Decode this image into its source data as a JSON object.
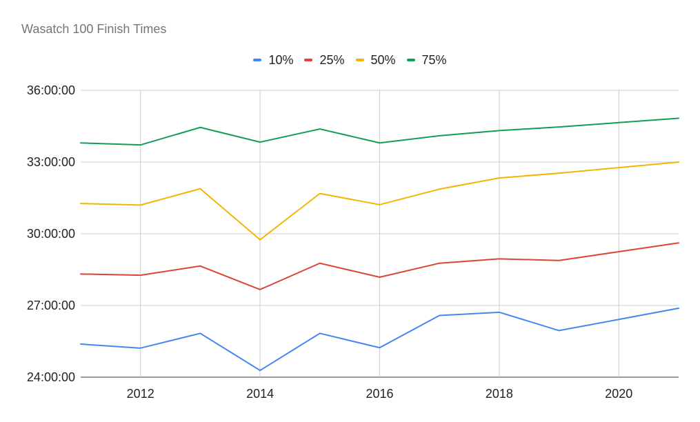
{
  "chart_data": {
    "type": "line",
    "title": "Wasatch 100 Finish Times",
    "xlabel": "",
    "ylabel": "",
    "x": [
      2011,
      2012,
      2013,
      2014,
      2015,
      2016,
      2017,
      2018,
      2019,
      2020,
      2021
    ],
    "x_ticks": [
      "2012",
      "2014",
      "2016",
      "2018",
      "2020"
    ],
    "xlim": [
      2011,
      2021
    ],
    "y_ticks": [
      "24:00:00",
      "27:00:00",
      "30:00:00",
      "33:00:00",
      "36:00:00"
    ],
    "ylim": [
      "24:00:00",
      "36:00:00"
    ],
    "grid": true,
    "legend_position": "top",
    "series": [
      {
        "name": "10%",
        "color": "#4285f4",
        "values": [
          "25:23:00",
          "25:13:00",
          "25:50:00",
          "24:17:00",
          "25:50:00",
          "25:14:00",
          "26:35:00",
          "26:43:00",
          "25:57:00",
          "26:25:00",
          "26:53:00"
        ]
      },
      {
        "name": "25%",
        "color": "#db4437",
        "values": [
          "28:19:00",
          "28:16:00",
          "28:39:00",
          "27:40:00",
          "28:46:00",
          "28:11:00",
          "28:46:00",
          "28:57:00",
          "28:53:00",
          "29:15:00",
          "29:37:00"
        ]
      },
      {
        "name": "50%",
        "color": "#f4b400",
        "values": [
          "31:16:00",
          "31:12:00",
          "31:53:00",
          "29:45:00",
          "31:41:00",
          "31:13:00",
          "31:52:00",
          "32:20:00",
          "32:32:00",
          "32:46:00",
          "33:00:00"
        ]
      },
      {
        "name": "75%",
        "color": "#0f9d58",
        "values": [
          "33:48:00",
          "33:43:00",
          "34:27:00",
          "33:50:00",
          "34:23:00",
          "33:48:00",
          "34:06:00",
          "34:19:00",
          "34:28:00",
          "34:39:00",
          "34:50:00"
        ]
      }
    ]
  }
}
